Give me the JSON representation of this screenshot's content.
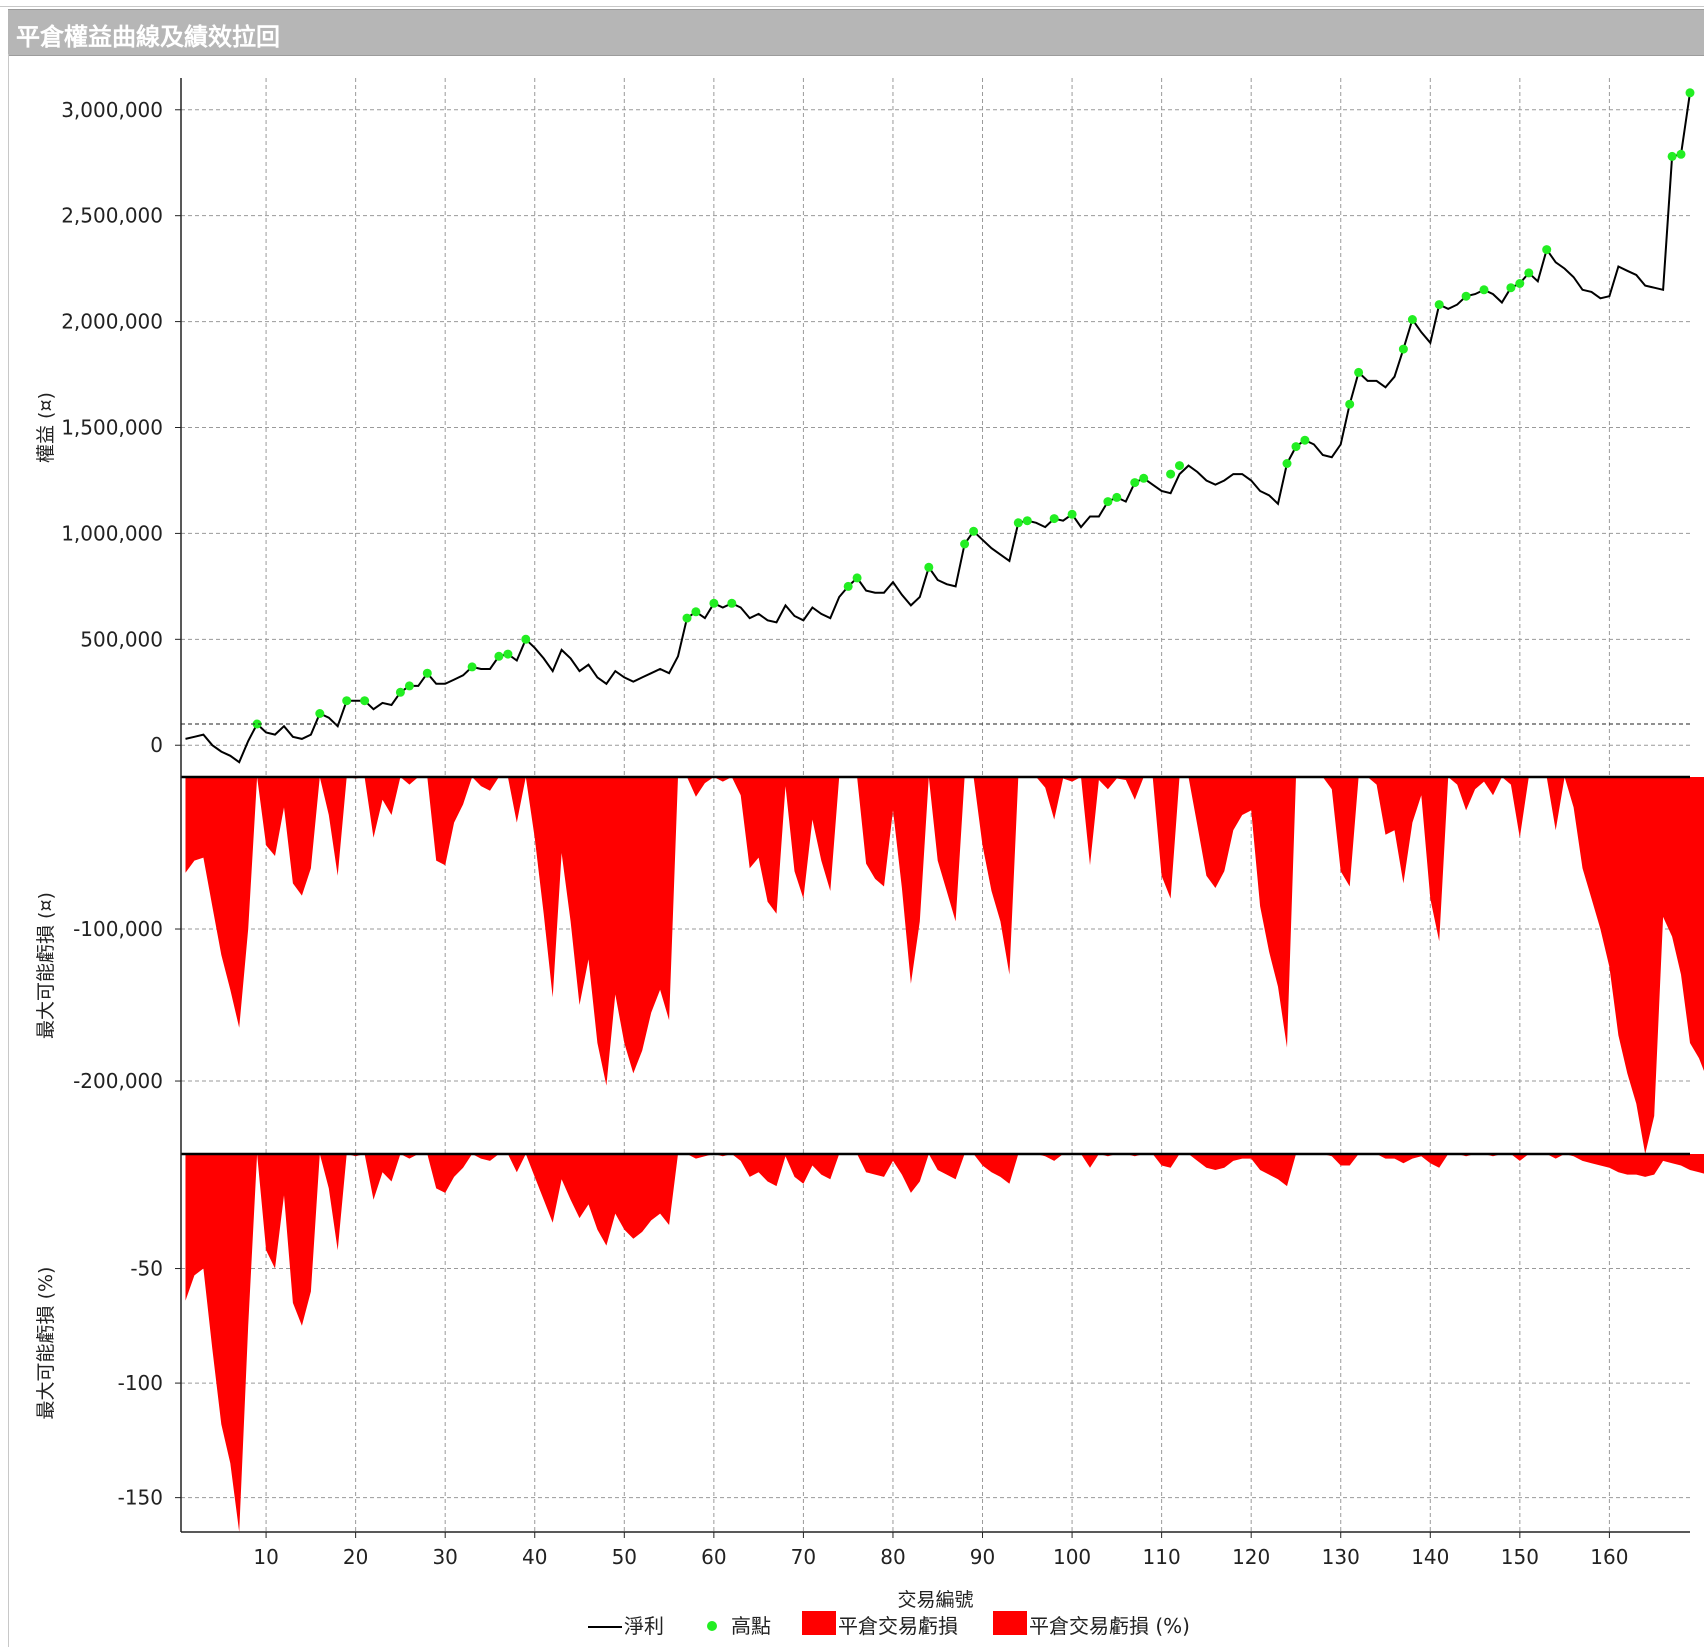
{
  "window": {
    "title": "平倉權益曲線及績效拉回"
  },
  "chart_data": {
    "type": "line",
    "xlabel": "交易編號",
    "x_ticks": [
      10,
      20,
      30,
      40,
      50,
      60,
      70,
      80,
      90,
      100,
      110,
      120,
      130,
      140,
      150,
      160
    ],
    "x_range": [
      0.5,
      169
    ],
    "grid": true,
    "legend_position": "bottom",
    "legend": [
      "淨利",
      "高點",
      "平倉交易虧損",
      "平倉交易虧損 (%)"
    ],
    "colors": {
      "line": "#000000",
      "highs": "#22ee22",
      "drawdown": "#ff0000"
    },
    "panels": [
      {
        "name": "equity",
        "ylabel": "權益 (¤)",
        "ylim": [
          -150000,
          3150000
        ],
        "y_ticks": [
          0,
          500000,
          1000000,
          1500000,
          2000000,
          2500000,
          3000000
        ],
        "y_tick_labels": [
          "0",
          "500,000",
          "1,000,000",
          "1,500,000",
          "2,000,000",
          "2,500,000",
          "3,000,000"
        ],
        "baseline_value": 100000,
        "series": [
          {
            "name": "淨利",
            "kind": "line",
            "values": [
              30000,
              40000,
              50000,
              0,
              -30000,
              -50000,
              -80000,
              20000,
              100000,
              60000,
              50000,
              90000,
              40000,
              30000,
              50000,
              150000,
              130000,
              90000,
              210000,
              210000,
              210000,
              170000,
              200000,
              190000,
              250000,
              280000,
              280000,
              340000,
              290000,
              290000,
              310000,
              330000,
              370000,
              360000,
              360000,
              420000,
              430000,
              400000,
              500000,
              460000,
              410000,
              350000,
              450000,
              410000,
              350000,
              380000,
              320000,
              290000,
              350000,
              320000,
              300000,
              320000,
              340000,
              360000,
              340000,
              420000,
              600000,
              630000,
              600000,
              670000,
              650000,
              670000,
              650000,
              600000,
              620000,
              590000,
              580000,
              660000,
              610000,
              590000,
              650000,
              620000,
              600000,
              700000,
              750000,
              790000,
              730000,
              720000,
              720000,
              770000,
              710000,
              660000,
              700000,
              840000,
              780000,
              760000,
              750000,
              950000,
              1010000,
              970000,
              930000,
              900000,
              870000,
              1050000,
              1060000,
              1050000,
              1030000,
              1070000,
              1060000,
              1090000,
              1030000,
              1080000,
              1080000,
              1150000,
              1170000,
              1150000,
              1240000,
              1260000,
              1230000,
              1200000,
              1190000,
              1280000,
              1320000,
              1290000,
              1250000,
              1230000,
              1250000,
              1280000,
              1280000,
              1250000,
              1200000,
              1180000,
              1140000,
              1330000,
              1410000,
              1440000,
              1420000,
              1370000,
              1360000,
              1420000,
              1610000,
              1760000,
              1720000,
              1720000,
              1690000,
              1740000,
              1870000,
              2010000,
              1950000,
              1900000,
              2080000,
              2060000,
              2080000,
              2120000,
              2130000,
              2150000,
              2130000,
              2090000,
              2160000,
              2180000,
              2230000,
              2190000,
              2340000,
              2280000,
              2250000,
              2210000,
              2150000,
              2140000,
              2110000,
              2120000,
              2260000,
              2240000,
              2220000,
              2170000,
              2160000,
              2150000,
              2780000,
              2790000,
              3080000
            ]
          },
          {
            "name": "高點",
            "kind": "scatter",
            "points": [
              [
                9,
                100000
              ],
              [
                16,
                150000
              ],
              [
                19,
                210000
              ],
              [
                21,
                210000
              ],
              [
                25,
                250000
              ],
              [
                26,
                280000
              ],
              [
                28,
                340000
              ],
              [
                33,
                370000
              ],
              [
                36,
                420000
              ],
              [
                37,
                430000
              ],
              [
                39,
                500000
              ],
              [
                57,
                600000
              ],
              [
                58,
                630000
              ],
              [
                60,
                670000
              ],
              [
                62,
                670000
              ],
              [
                75,
                750000
              ],
              [
                76,
                790000
              ],
              [
                84,
                840000
              ],
              [
                88,
                950000
              ],
              [
                89,
                1010000
              ],
              [
                94,
                1050000
              ],
              [
                95,
                1060000
              ],
              [
                98,
                1070000
              ],
              [
                100,
                1090000
              ],
              [
                104,
                1150000
              ],
              [
                105,
                1170000
              ],
              [
                107,
                1240000
              ],
              [
                108,
                1260000
              ],
              [
                111,
                1280000
              ],
              [
                112,
                1320000
              ],
              [
                124,
                1330000
              ],
              [
                125,
                1410000
              ],
              [
                126,
                1440000
              ],
              [
                131,
                1610000
              ],
              [
                132,
                1760000
              ],
              [
                137,
                1870000
              ],
              [
                138,
                2010000
              ],
              [
                141,
                2080000
              ],
              [
                144,
                2120000
              ],
              [
                146,
                2150000
              ],
              [
                149,
                2160000
              ],
              [
                150,
                2180000
              ],
              [
                151,
                2230000
              ],
              [
                153,
                2340000
              ],
              [
                167,
                2780000
              ],
              [
                168,
                2790000
              ],
              [
                169,
                3080000
              ]
            ]
          }
        ]
      },
      {
        "name": "drawdown",
        "ylabel": "最大可能虧損 (¤)",
        "ylim": [
          -248000,
          0
        ],
        "y_ticks": [
          -100000,
          -200000
        ],
        "y_tick_labels": [
          "-100,000",
          "-200,000"
        ],
        "series": [
          {
            "name": "平倉交易虧損",
            "kind": "area",
            "values": [
              -63000,
              -55000,
              -53000,
              -85000,
              -117000,
              -140000,
              -165000,
              -100000,
              0,
              -45000,
              -52000,
              -20000,
              -70000,
              -78000,
              -60000,
              0,
              -25000,
              -65000,
              0,
              -1000,
              0,
              -40000,
              -15000,
              -25000,
              0,
              -5000,
              0,
              0,
              -55000,
              -58000,
              -30000,
              -18000,
              0,
              -6000,
              -9000,
              0,
              0,
              -30000,
              0,
              -40000,
              -90000,
              -145000,
              -50000,
              -95000,
              -150000,
              -120000,
              -175000,
              -203000,
              -143000,
              -175000,
              -195000,
              -180000,
              -155000,
              -140000,
              -160000,
              0,
              0,
              -13000,
              -4000,
              0,
              -3000,
              0,
              -12000,
              -60000,
              -53000,
              -82000,
              -90000,
              -6000,
              -62000,
              -80000,
              -28000,
              -55000,
              -75000,
              0,
              0,
              0,
              -57000,
              -67000,
              -72000,
              -22000,
              -73000,
              -136000,
              -95000,
              0,
              -55000,
              -75000,
              -95000,
              0,
              0,
              -45000,
              -75000,
              -95000,
              -130000,
              0,
              0,
              0,
              -7000,
              -28000,
              -1000,
              -3000,
              0,
              -58000,
              -2000,
              -8000,
              -1000,
              -2000,
              -15000,
              0,
              0,
              -65000,
              -80000,
              0,
              0,
              -32000,
              -65000,
              -73000,
              -62000,
              -35000,
              -25000,
              -22000,
              -85000,
              -115000,
              -138000,
              -178000,
              0,
              0,
              0,
              0,
              -8000,
              -62000,
              -72000,
              0,
              0,
              -5000,
              -38000,
              -35000,
              -70000,
              -30000,
              -12000,
              -80000,
              -108000,
              0,
              -5000,
              -22000,
              -8000,
              -3000,
              -12000,
              0,
              -5000,
              -40000,
              0,
              0,
              0,
              -35000,
              0,
              -20000,
              -60000,
              -80000,
              -100000,
              -125000,
              -170000,
              -195000,
              -215000,
              -248000,
              -223000,
              -92000,
              -105000,
              -130000,
              -175000,
              -185000,
              -200000,
              0,
              0,
              0
            ]
          }
        ]
      },
      {
        "name": "drawdown_pct",
        "ylabel": "最大可能虧損 (%)",
        "ylim": [
          -165,
          0
        ],
        "y_ticks": [
          -50,
          -100,
          -150
        ],
        "y_tick_labels": [
          "-50",
          "-100",
          "-150"
        ],
        "series": [
          {
            "name": "平倉交易虧損 (%)",
            "kind": "area",
            "values": [
              -64,
              -53,
              -50,
              -85,
              -118,
              -135,
              -165,
              -75,
              0,
              -42,
              -50,
              -18,
              -65,
              -75,
              -60,
              0,
              -15,
              -42,
              0,
              -1,
              0,
              -20,
              -8,
              -12,
              0,
              -2,
              0,
              0,
              -15,
              -17,
              -10,
              -6,
              0,
              -2,
              -3,
              0,
              0,
              -8,
              0,
              -10,
              -20,
              -30,
              -11,
              -20,
              -28,
              -22,
              -33,
              -40,
              -26,
              -33,
              -37,
              -34,
              -29,
              -26,
              -31,
              0,
              0,
              -2,
              -1,
              0,
              -1,
              0,
              -3,
              -10,
              -8,
              -12,
              -14,
              -1,
              -10,
              -13,
              -5,
              -9,
              -11,
              0,
              0,
              0,
              -8,
              -9,
              -10,
              -3,
              -9,
              -17,
              -12,
              0,
              -7,
              -9,
              -11,
              0,
              0,
              -5,
              -8,
              -10,
              -13,
              0,
              0,
              0,
              -1,
              -3,
              0,
              0,
              0,
              -6,
              0,
              -1,
              0,
              0,
              -1,
              0,
              0,
              -5,
              -6,
              0,
              0,
              -3,
              -6,
              -7,
              -6,
              -3,
              -2,
              -2,
              -7,
              -9,
              -11,
              -14,
              0,
              0,
              0,
              0,
              -1,
              -5,
              -5,
              0,
              0,
              0,
              -2,
              -2,
              -4,
              -2,
              -1,
              -4,
              -6,
              0,
              0,
              -1,
              0,
              0,
              -1,
              0,
              0,
              -3,
              0,
              0,
              0,
              -2,
              0,
              -1,
              -3,
              -4,
              -5,
              -6,
              -8,
              -9,
              -9,
              -10,
              -9,
              -3,
              -4,
              -5,
              -7,
              -8,
              -9,
              0,
              0,
              0
            ]
          }
        ]
      }
    ]
  }
}
